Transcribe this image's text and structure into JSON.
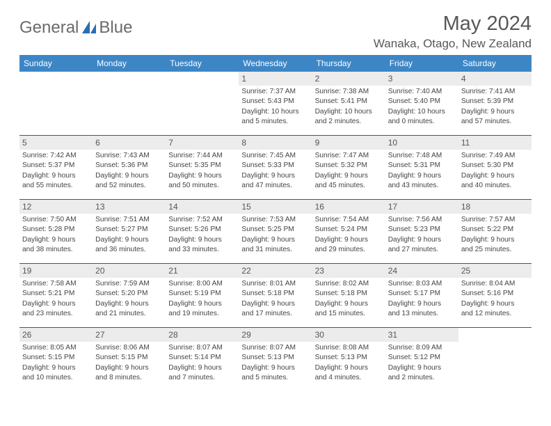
{
  "brand": {
    "part1": "General",
    "part2": "Blue"
  },
  "title": "May 2024",
  "location": "Wanaka, Otago, New Zealand",
  "day_headers": [
    "Sunday",
    "Monday",
    "Tuesday",
    "Wednesday",
    "Thursday",
    "Friday",
    "Saturday"
  ],
  "colors": {
    "header_bg": "#3d86c6",
    "header_text": "#ffffff",
    "cell_divider": "#2f5a86",
    "daynum_bg": "#ececec",
    "logo_text": "#6a6a6a",
    "logo_blue": "#2a6db3"
  },
  "weeks": [
    [
      null,
      null,
      null,
      {
        "n": "1",
        "sr": "Sunrise: 7:37 AM",
        "ss": "Sunset: 5:43 PM",
        "d1": "Daylight: 10 hours",
        "d2": "and 5 minutes."
      },
      {
        "n": "2",
        "sr": "Sunrise: 7:38 AM",
        "ss": "Sunset: 5:41 PM",
        "d1": "Daylight: 10 hours",
        "d2": "and 2 minutes."
      },
      {
        "n": "3",
        "sr": "Sunrise: 7:40 AM",
        "ss": "Sunset: 5:40 PM",
        "d1": "Daylight: 10 hours",
        "d2": "and 0 minutes."
      },
      {
        "n": "4",
        "sr": "Sunrise: 7:41 AM",
        "ss": "Sunset: 5:39 PM",
        "d1": "Daylight: 9 hours",
        "d2": "and 57 minutes."
      }
    ],
    [
      {
        "n": "5",
        "sr": "Sunrise: 7:42 AM",
        "ss": "Sunset: 5:37 PM",
        "d1": "Daylight: 9 hours",
        "d2": "and 55 minutes."
      },
      {
        "n": "6",
        "sr": "Sunrise: 7:43 AM",
        "ss": "Sunset: 5:36 PM",
        "d1": "Daylight: 9 hours",
        "d2": "and 52 minutes."
      },
      {
        "n": "7",
        "sr": "Sunrise: 7:44 AM",
        "ss": "Sunset: 5:35 PM",
        "d1": "Daylight: 9 hours",
        "d2": "and 50 minutes."
      },
      {
        "n": "8",
        "sr": "Sunrise: 7:45 AM",
        "ss": "Sunset: 5:33 PM",
        "d1": "Daylight: 9 hours",
        "d2": "and 47 minutes."
      },
      {
        "n": "9",
        "sr": "Sunrise: 7:47 AM",
        "ss": "Sunset: 5:32 PM",
        "d1": "Daylight: 9 hours",
        "d2": "and 45 minutes."
      },
      {
        "n": "10",
        "sr": "Sunrise: 7:48 AM",
        "ss": "Sunset: 5:31 PM",
        "d1": "Daylight: 9 hours",
        "d2": "and 43 minutes."
      },
      {
        "n": "11",
        "sr": "Sunrise: 7:49 AM",
        "ss": "Sunset: 5:30 PM",
        "d1": "Daylight: 9 hours",
        "d2": "and 40 minutes."
      }
    ],
    [
      {
        "n": "12",
        "sr": "Sunrise: 7:50 AM",
        "ss": "Sunset: 5:28 PM",
        "d1": "Daylight: 9 hours",
        "d2": "and 38 minutes."
      },
      {
        "n": "13",
        "sr": "Sunrise: 7:51 AM",
        "ss": "Sunset: 5:27 PM",
        "d1": "Daylight: 9 hours",
        "d2": "and 36 minutes."
      },
      {
        "n": "14",
        "sr": "Sunrise: 7:52 AM",
        "ss": "Sunset: 5:26 PM",
        "d1": "Daylight: 9 hours",
        "d2": "and 33 minutes."
      },
      {
        "n": "15",
        "sr": "Sunrise: 7:53 AM",
        "ss": "Sunset: 5:25 PM",
        "d1": "Daylight: 9 hours",
        "d2": "and 31 minutes."
      },
      {
        "n": "16",
        "sr": "Sunrise: 7:54 AM",
        "ss": "Sunset: 5:24 PM",
        "d1": "Daylight: 9 hours",
        "d2": "and 29 minutes."
      },
      {
        "n": "17",
        "sr": "Sunrise: 7:56 AM",
        "ss": "Sunset: 5:23 PM",
        "d1": "Daylight: 9 hours",
        "d2": "and 27 minutes."
      },
      {
        "n": "18",
        "sr": "Sunrise: 7:57 AM",
        "ss": "Sunset: 5:22 PM",
        "d1": "Daylight: 9 hours",
        "d2": "and 25 minutes."
      }
    ],
    [
      {
        "n": "19",
        "sr": "Sunrise: 7:58 AM",
        "ss": "Sunset: 5:21 PM",
        "d1": "Daylight: 9 hours",
        "d2": "and 23 minutes."
      },
      {
        "n": "20",
        "sr": "Sunrise: 7:59 AM",
        "ss": "Sunset: 5:20 PM",
        "d1": "Daylight: 9 hours",
        "d2": "and 21 minutes."
      },
      {
        "n": "21",
        "sr": "Sunrise: 8:00 AM",
        "ss": "Sunset: 5:19 PM",
        "d1": "Daylight: 9 hours",
        "d2": "and 19 minutes."
      },
      {
        "n": "22",
        "sr": "Sunrise: 8:01 AM",
        "ss": "Sunset: 5:18 PM",
        "d1": "Daylight: 9 hours",
        "d2": "and 17 minutes."
      },
      {
        "n": "23",
        "sr": "Sunrise: 8:02 AM",
        "ss": "Sunset: 5:18 PM",
        "d1": "Daylight: 9 hours",
        "d2": "and 15 minutes."
      },
      {
        "n": "24",
        "sr": "Sunrise: 8:03 AM",
        "ss": "Sunset: 5:17 PM",
        "d1": "Daylight: 9 hours",
        "d2": "and 13 minutes."
      },
      {
        "n": "25",
        "sr": "Sunrise: 8:04 AM",
        "ss": "Sunset: 5:16 PM",
        "d1": "Daylight: 9 hours",
        "d2": "and 12 minutes."
      }
    ],
    [
      {
        "n": "26",
        "sr": "Sunrise: 8:05 AM",
        "ss": "Sunset: 5:15 PM",
        "d1": "Daylight: 9 hours",
        "d2": "and 10 minutes."
      },
      {
        "n": "27",
        "sr": "Sunrise: 8:06 AM",
        "ss": "Sunset: 5:15 PM",
        "d1": "Daylight: 9 hours",
        "d2": "and 8 minutes."
      },
      {
        "n": "28",
        "sr": "Sunrise: 8:07 AM",
        "ss": "Sunset: 5:14 PM",
        "d1": "Daylight: 9 hours",
        "d2": "and 7 minutes."
      },
      {
        "n": "29",
        "sr": "Sunrise: 8:07 AM",
        "ss": "Sunset: 5:13 PM",
        "d1": "Daylight: 9 hours",
        "d2": "and 5 minutes."
      },
      {
        "n": "30",
        "sr": "Sunrise: 8:08 AM",
        "ss": "Sunset: 5:13 PM",
        "d1": "Daylight: 9 hours",
        "d2": "and 4 minutes."
      },
      {
        "n": "31",
        "sr": "Sunrise: 8:09 AM",
        "ss": "Sunset: 5:12 PM",
        "d1": "Daylight: 9 hours",
        "d2": "and 2 minutes."
      },
      null
    ]
  ]
}
